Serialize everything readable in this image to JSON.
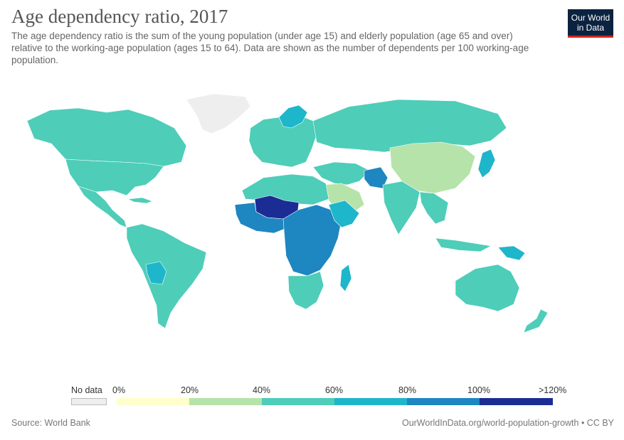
{
  "header": {
    "title": "Age dependency ratio, 2017",
    "subtitle": "The age dependency ratio is the sum of the young population (under age 15) and elderly population (age 65 and over) relative to the working-age population (ages 15 to 64). Data are shown as the number of dependents per 100 working-age population."
  },
  "logo": {
    "line1": "Our World",
    "line2": "in Data"
  },
  "legend": {
    "no_data_label": "No data",
    "no_data_color": "#eeeeee",
    "bins": [
      {
        "label": "0%",
        "color": "#ffffcc"
      },
      {
        "label": "20%",
        "color": "#b6e3a9"
      },
      {
        "label": "40%",
        "color": "#4ecdb9"
      },
      {
        "label": "60%",
        "color": "#1eb6ca"
      },
      {
        "label": "80%",
        "color": "#1e86c0"
      },
      {
        "label": "100%",
        "color": "#1b2d94"
      }
    ],
    "end_label": ">120%"
  },
  "footer": {
    "source": "Source: World Bank",
    "credit": "OurWorldInData.org/world-population-growth • CC BY"
  }
}
